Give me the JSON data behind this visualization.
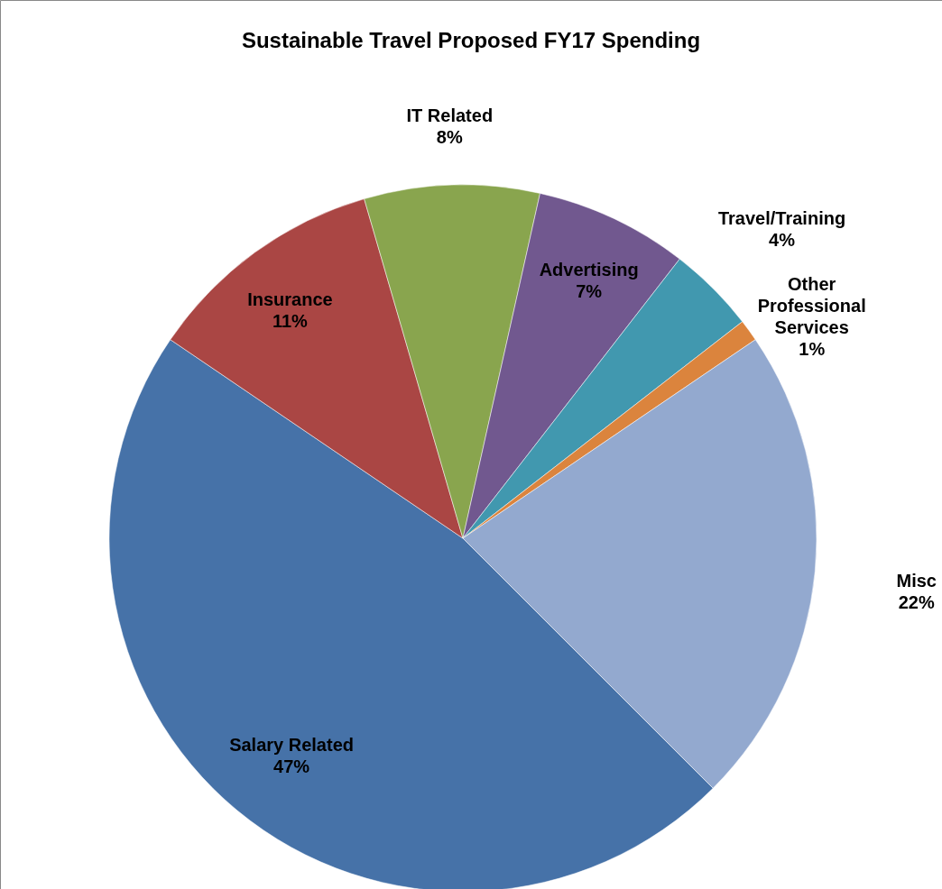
{
  "chart_data": {
    "type": "pie",
    "title": "Sustainable Travel Proposed FY17 Spending",
    "categories": [
      "Salary Related",
      "Insurance",
      "IT Related",
      "Advertising",
      "Travel/Training",
      "Other Professional Services",
      "Misc"
    ],
    "values": [
      47,
      11,
      8,
      7,
      4,
      1,
      22
    ],
    "value_labels": [
      "47%",
      "11%",
      "8%",
      "7%",
      "4%",
      "1%",
      "22%"
    ],
    "colors": [
      "#4672a8",
      "#aa4644",
      "#89a54e",
      "#71588f",
      "#4198af",
      "#db843d",
      "#93a9cf"
    ]
  }
}
